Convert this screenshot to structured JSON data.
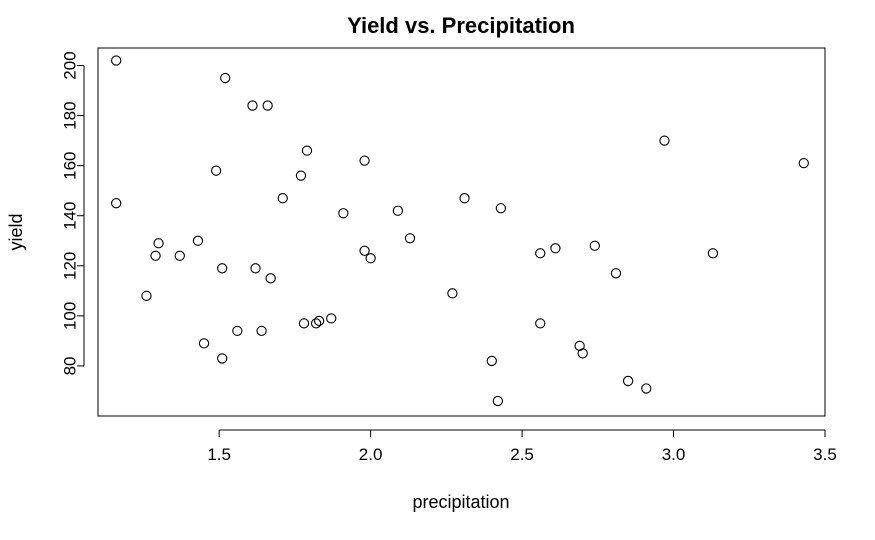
{
  "chart_data": {
    "type": "scatter",
    "title": "Yield vs. Precipitation",
    "xlabel": "precipitation",
    "ylabel": "yield",
    "xlim": [
      1.1,
      3.5
    ],
    "ylim": [
      60,
      207
    ],
    "xticks": [
      1.5,
      2.0,
      2.5,
      3.0,
      3.5
    ],
    "xtick_labels": [
      "1.5",
      "2.0",
      "2.5",
      "3.0",
      "3.5"
    ],
    "yticks": [
      80,
      100,
      120,
      140,
      160,
      180,
      200
    ],
    "ytick_labels": [
      "80",
      "100",
      "120",
      "140",
      "160",
      "180",
      "200"
    ],
    "grid": false,
    "points": [
      {
        "x": 1.16,
        "y": 202
      },
      {
        "x": 1.16,
        "y": 145
      },
      {
        "x": 1.26,
        "y": 108
      },
      {
        "x": 1.29,
        "y": 124
      },
      {
        "x": 1.3,
        "y": 129
      },
      {
        "x": 1.37,
        "y": 124
      },
      {
        "x": 1.43,
        "y": 130
      },
      {
        "x": 1.45,
        "y": 89
      },
      {
        "x": 1.49,
        "y": 158
      },
      {
        "x": 1.51,
        "y": 83
      },
      {
        "x": 1.51,
        "y": 119
      },
      {
        "x": 1.52,
        "y": 195
      },
      {
        "x": 1.56,
        "y": 94
      },
      {
        "x": 1.61,
        "y": 184
      },
      {
        "x": 1.62,
        "y": 119
      },
      {
        "x": 1.64,
        "y": 94
      },
      {
        "x": 1.66,
        "y": 184
      },
      {
        "x": 1.67,
        "y": 115
      },
      {
        "x": 1.71,
        "y": 147
      },
      {
        "x": 1.77,
        "y": 156
      },
      {
        "x": 1.78,
        "y": 97
      },
      {
        "x": 1.79,
        "y": 166
      },
      {
        "x": 1.82,
        "y": 97
      },
      {
        "x": 1.83,
        "y": 98
      },
      {
        "x": 1.87,
        "y": 99
      },
      {
        "x": 1.91,
        "y": 141
      },
      {
        "x": 1.98,
        "y": 162
      },
      {
        "x": 1.98,
        "y": 126
      },
      {
        "x": 2.0,
        "y": 123
      },
      {
        "x": 2.09,
        "y": 142
      },
      {
        "x": 2.13,
        "y": 131
      },
      {
        "x": 2.27,
        "y": 109
      },
      {
        "x": 2.31,
        "y": 147
      },
      {
        "x": 2.4,
        "y": 82
      },
      {
        "x": 2.42,
        "y": 66
      },
      {
        "x": 2.43,
        "y": 143
      },
      {
        "x": 2.56,
        "y": 97
      },
      {
        "x": 2.56,
        "y": 125
      },
      {
        "x": 2.61,
        "y": 127
      },
      {
        "x": 2.69,
        "y": 88
      },
      {
        "x": 2.7,
        "y": 85
      },
      {
        "x": 2.74,
        "y": 128
      },
      {
        "x": 2.81,
        "y": 117
      },
      {
        "x": 2.85,
        "y": 74
      },
      {
        "x": 2.91,
        "y": 71
      },
      {
        "x": 2.97,
        "y": 170
      },
      {
        "x": 3.13,
        "y": 125
      },
      {
        "x": 3.43,
        "y": 161
      }
    ]
  }
}
